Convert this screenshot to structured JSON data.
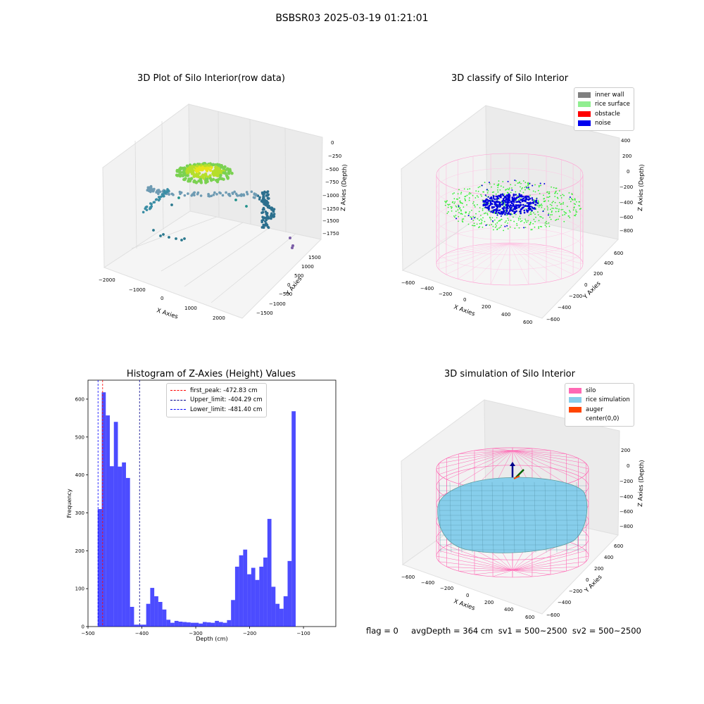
{
  "figure": {
    "suptitle": "BSBSR03 2025-03-19 01:21:01",
    "footer": "flag = 0     avgDepth = 364 cm  sv1 = 500~2500  sv2 = 500~2500"
  },
  "panels": {
    "raw": {
      "title": "3D Plot of Silo Interior(row data)",
      "xlabel": "X Axies",
      "ylabel": "Y Axies",
      "zlabel": "Z Axies (Depth)",
      "xticks": [
        "−2000",
        "−1000",
        "0",
        "1000",
        "2000"
      ],
      "yticks": [
        "1500",
        "1000",
        "500",
        "0",
        "−500",
        "−1000",
        "−1500"
      ],
      "zticks": [
        "0",
        "−250",
        "−500",
        "−750",
        "−1000",
        "−1250",
        "−1500",
        "−1750"
      ]
    },
    "classify": {
      "title": "3D classify of Silo Interior",
      "xlabel": "X Axies",
      "ylabel": "Y Axies",
      "zlabel": "Z Axies (Depth)",
      "xticks": [
        "−600",
        "−400",
        "−200",
        "0",
        "200",
        "400",
        "600"
      ],
      "yticks": [
        "600",
        "400",
        "200",
        "0",
        "−200",
        "−400",
        "−600"
      ],
      "zticks": [
        "400",
        "200",
        "0",
        "−200",
        "−400",
        "−600",
        "−800"
      ],
      "legend": [
        {
          "label": "inner wall",
          "color": "#808080"
        },
        {
          "label": "rice surface",
          "color": "#90ee90"
        },
        {
          "label": "obstacle",
          "color": "#ff0000"
        },
        {
          "label": "noise",
          "color": "#0000ee"
        }
      ]
    },
    "simulation": {
      "title": "3D simulation of Silo Interior",
      "xlabel": "X Axies",
      "ylabel": "Y Axies",
      "zlabel": "Z Axies (Depth)",
      "xticks": [
        "−600",
        "−400",
        "−200",
        "0",
        "200",
        "400",
        "600"
      ],
      "yticks": [
        "600",
        "400",
        "200",
        "0",
        "−200",
        "−400",
        "−600"
      ],
      "zticks": [
        "200",
        "0",
        "−200",
        "−400",
        "−600",
        "−800"
      ],
      "legend": [
        {
          "label": "silo",
          "color": "#ff69b4"
        },
        {
          "label": "rice simulation",
          "color": "#87ceeb"
        },
        {
          "label": "auger",
          "color": "#ff4500"
        },
        {
          "label": "center(0,0)",
          "color": ""
        }
      ]
    }
  },
  "chart_data": {
    "type": "bar",
    "title": "Histogram of Z-Axies (Height) Values",
    "xlabel": "Depth (cm)",
    "ylabel": "Frequency",
    "xlim": [
      -500,
      -40
    ],
    "ylim": [
      0,
      650
    ],
    "xticks": [
      -500,
      -400,
      -300,
      -200,
      -100
    ],
    "yticks": [
      0,
      100,
      200,
      300,
      400,
      500,
      600
    ],
    "bin_width": 7.5,
    "bin_start": -482,
    "values": [
      310,
      618,
      557,
      423,
      540,
      422,
      433,
      392,
      52,
      5,
      5,
      5,
      60,
      102,
      80,
      65,
      45,
      18,
      10,
      15,
      13,
      12,
      11,
      10,
      10,
      8,
      12,
      11,
      10,
      15,
      12,
      10,
      17,
      70,
      158,
      188,
      203,
      138,
      155,
      123,
      158,
      182,
      284,
      105,
      60,
      47,
      80,
      173,
      568
    ],
    "bar_color": "#0000ff",
    "vlines": [
      {
        "label": "first_peak: -472.83 cm",
        "x": -472.83,
        "color": "#ff0000"
      },
      {
        "label": "Upper_limit: -404.29 cm",
        "x": -404.29,
        "color": "#00008b"
      },
      {
        "label": "Lower_limit: -481.40 cm",
        "x": -481.4,
        "color": "#0000ff"
      }
    ],
    "legend_position": "top-center"
  }
}
